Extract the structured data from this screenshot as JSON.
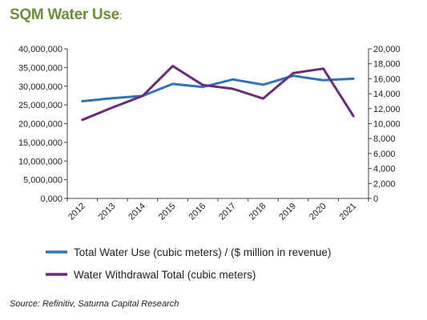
{
  "chart_data": {
    "type": "line",
    "title": "SQM Water Use",
    "title_suffix": ":",
    "x": [
      "2012",
      "2013",
      "2014",
      "2015",
      "2016",
      "2017",
      "2018",
      "2019",
      "2020",
      "2021"
    ],
    "left_axis": {
      "ylim": [
        0,
        40000000
      ],
      "ticks": [
        "0,000",
        "5,000,000",
        "10,000,000",
        "15,000,000",
        "20,000,000",
        "25,000,000",
        "30,000,000",
        "35,000,000",
        "40,000,000"
      ]
    },
    "right_axis": {
      "ylim": [
        0,
        20000
      ],
      "ticks": [
        "0",
        "2,000",
        "4,000",
        "6,000",
        "8,000",
        "10,000",
        "12,000",
        "14,000",
        "16,000",
        "18,000",
        "20,000"
      ]
    },
    "series": [
      {
        "name": "Total Water Use (cubic meters) / ($ million in revenue)",
        "axis": "right",
        "color": "#2e75b6",
        "values": [
          13000,
          13400,
          13700,
          15300,
          14900,
          15900,
          15200,
          16400,
          15800,
          16000
        ]
      },
      {
        "name": "Water Withdrawal Total (cubic meters)",
        "axis": "left",
        "color": "#6b2c7c",
        "values": [
          21000000,
          24300000,
          27400000,
          35400000,
          30300000,
          29300000,
          26700000,
          33500000,
          34700000,
          22000000
        ]
      }
    ],
    "grid": false,
    "legend_position": "bottom"
  },
  "source": "Source: Refinitiv, Saturna Capital Research"
}
